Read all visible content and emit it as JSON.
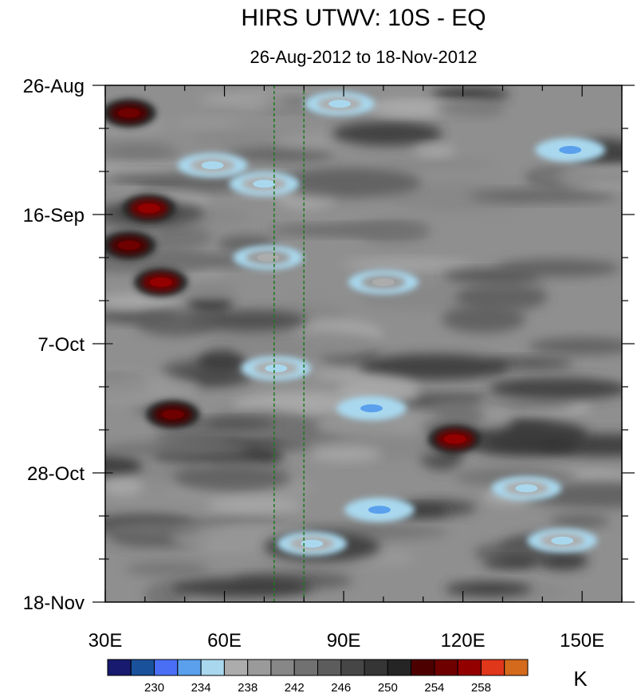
{
  "chart_data": {
    "type": "heatmap",
    "title": "HIRS UTWV: 10S - EQ",
    "subtitle": "26-Aug-2012 to 18-Nov-2012",
    "xlabel": "",
    "ylabel": "",
    "x_range": [
      30,
      160
    ],
    "x_ticks": [
      {
        "value": 30,
        "label": "30E"
      },
      {
        "value": 60,
        "label": "60E"
      },
      {
        "value": 90,
        "label": "90E"
      },
      {
        "value": 120,
        "label": "120E"
      },
      {
        "value": 150,
        "label": "150E"
      }
    ],
    "y_range_days": [
      0,
      84
    ],
    "y_ticks": [
      {
        "value": 0,
        "label": "26-Aug"
      },
      {
        "value": 21,
        "label": "16-Sep"
      },
      {
        "value": 42,
        "label": "7-Oct"
      },
      {
        "value": 63,
        "label": "28-Oct"
      },
      {
        "value": 84,
        "label": "18-Nov"
      }
    ],
    "reference_lines_lon": [
      72.5,
      80
    ],
    "colorbar": {
      "unit": "K",
      "levels": [
        228,
        230,
        232,
        234,
        236,
        238,
        240,
        242,
        244,
        246,
        248,
        250,
        252,
        254,
        256,
        258,
        260
      ],
      "labels": [
        "230",
        "234",
        "238",
        "242",
        "246",
        "250",
        "254",
        "258"
      ],
      "colors": [
        "#171a6e",
        "#19519b",
        "#4a6ff5",
        "#5aa0ec",
        "#a9d8ee",
        "#acacac",
        "#9a9a9a",
        "#878787",
        "#717171",
        "#5c5c5c",
        "#464646",
        "#353535",
        "#252525",
        "#4d0000",
        "#6e0000",
        "#930000",
        "#e0361a",
        "#d46a1c"
      ]
    },
    "features": [
      {
        "lon": 36,
        "day": 4.5,
        "value": 255
      },
      {
        "lon": 41,
        "day": 20,
        "value": 256
      },
      {
        "lon": 36,
        "day": 26,
        "value": 255
      },
      {
        "lon": 44,
        "day": 32,
        "value": 256
      },
      {
        "lon": 47,
        "day": 53.5,
        "value": 254
      },
      {
        "lon": 118,
        "day": 57.5,
        "value": 256
      },
      {
        "lon": 57,
        "day": 13,
        "value": 234
      },
      {
        "lon": 70,
        "day": 16,
        "value": 235
      },
      {
        "lon": 89,
        "day": 3,
        "value": 234
      },
      {
        "lon": 147,
        "day": 10.5,
        "value": 232
      },
      {
        "lon": 71,
        "day": 28,
        "value": 236
      },
      {
        "lon": 73,
        "day": 46,
        "value": 234
      },
      {
        "lon": 97,
        "day": 52.5,
        "value": 232
      },
      {
        "lon": 99,
        "day": 69,
        "value": 233
      },
      {
        "lon": 82,
        "day": 74.5,
        "value": 234
      },
      {
        "lon": 145,
        "day": 74,
        "value": 234
      },
      {
        "lon": 100,
        "day": 32,
        "value": 236
      },
      {
        "lon": 136,
        "day": 65.5,
        "value": 235
      }
    ]
  }
}
